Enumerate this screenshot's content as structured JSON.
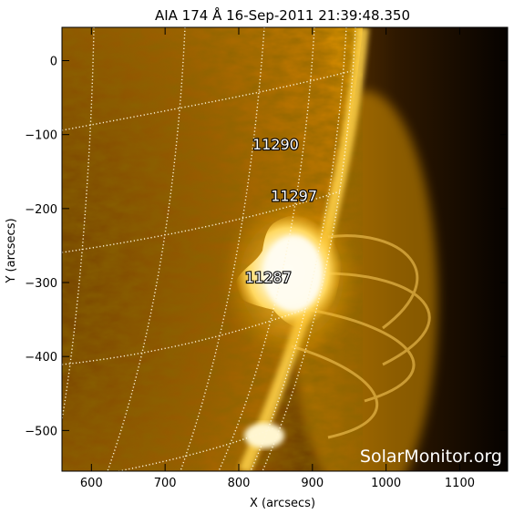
{
  "title": "AIA 174 Å 16-Sep-2011 21:39:48.350",
  "axes": {
    "xlabel": "X (arcsecs)",
    "ylabel": "Y (arcsecs)",
    "xlim": [
      560,
      1165
    ],
    "ylim": [
      -555,
      45
    ],
    "xticks": [
      600,
      700,
      800,
      900,
      1000,
      1100
    ],
    "yticks": [
      0,
      -100,
      -200,
      -300,
      -400,
      -500
    ]
  },
  "active_regions": [
    {
      "number": "11290",
      "x": 850,
      "y": -120
    },
    {
      "number": "11297",
      "x": 875,
      "y": -190
    },
    {
      "number": "11287",
      "x": 840,
      "y": -300
    }
  ],
  "watermark": "SolarMonitor.org",
  "colors": {
    "solar_disk": "#b87000",
    "corona": "#ffc400",
    "flare": "#fffbe8",
    "space": "#070300",
    "grid": "#fff6d8"
  }
}
